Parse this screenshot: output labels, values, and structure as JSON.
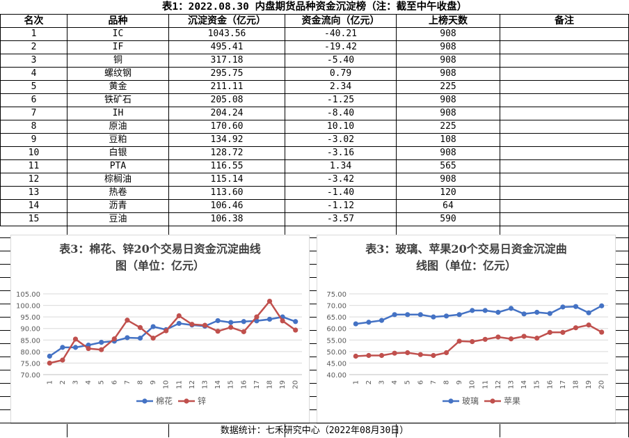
{
  "table": {
    "title": "表1：2022.08.30 内盘期货品种资金沉淀榜（注：截至中午收盘）",
    "headers": [
      "名次",
      "品种",
      "沉淀资金（亿元）",
      "资金流向（亿元）",
      "上榜天数",
      "备注"
    ],
    "rows": [
      [
        "1",
        "IC",
        "1043.56",
        "-40.21",
        "908",
        ""
      ],
      [
        "2",
        "IF",
        "495.41",
        "-19.42",
        "908",
        ""
      ],
      [
        "3",
        "铜",
        "317.18",
        "-5.40",
        "908",
        ""
      ],
      [
        "4",
        "螺纹钢",
        "295.75",
        "0.79",
        "908",
        ""
      ],
      [
        "5",
        "黄金",
        "211.11",
        "2.34",
        "225",
        ""
      ],
      [
        "6",
        "铁矿石",
        "205.08",
        "-1.25",
        "908",
        ""
      ],
      [
        "7",
        "IH",
        "204.24",
        "-8.40",
        "908",
        ""
      ],
      [
        "8",
        "原油",
        "170.60",
        "10.10",
        "225",
        ""
      ],
      [
        "9",
        "豆粕",
        "134.92",
        "-3.02",
        "108",
        ""
      ],
      [
        "10",
        "白银",
        "128.72",
        "-3.16",
        "908",
        ""
      ],
      [
        "11",
        "PTA",
        "116.55",
        "1.34",
        "565",
        ""
      ],
      [
        "12",
        "棕榈油",
        "115.14",
        "-3.42",
        "908",
        ""
      ],
      [
        "13",
        "热卷",
        "113.60",
        "-1.40",
        "120",
        ""
      ],
      [
        "14",
        "沥青",
        "106.46",
        "-1.12",
        "64",
        ""
      ],
      [
        "15",
        "豆油",
        "106.38",
        "-3.57",
        "590",
        ""
      ]
    ]
  },
  "footer": "数据统计：七禾研究中心（2022年08月30日）",
  "colors": {
    "series_blue": "#4472c4",
    "series_red": "#c0504d"
  },
  "chart_data": [
    {
      "type": "line",
      "title": "表3：棉花、锌20个交易日资金沉淀曲线图（单位：亿元）",
      "title_lines": [
        "表3：棉花、锌20个交易日资金沉淀曲线",
        "图（单位：亿元）"
      ],
      "x": [
        1,
        2,
        3,
        4,
        5,
        6,
        7,
        8,
        9,
        10,
        11,
        12,
        13,
        14,
        15,
        16,
        17,
        18,
        19,
        20
      ],
      "ylim": [
        70,
        105
      ],
      "ytick_step": 5,
      "yticks": [
        "70.00",
        "75.00",
        "80.00",
        "85.00",
        "90.00",
        "95.00",
        "100.00",
        "105.00"
      ],
      "legend": "bottom",
      "grid": true,
      "series": [
        {
          "name": "棉花",
          "color": "#4472c4",
          "values": [
            78.0,
            81.8,
            81.8,
            82.8,
            84.0,
            84.5,
            86.0,
            85.8,
            90.8,
            89.5,
            92.2,
            91.5,
            91.0,
            93.4,
            92.6,
            93.0,
            93.3,
            94.0,
            95.0,
            93.0
          ]
        },
        {
          "name": "锌",
          "color": "#c0504d",
          "values": [
            75.0,
            76.3,
            85.4,
            81.3,
            80.8,
            85.5,
            93.6,
            90.4,
            85.8,
            89.0,
            95.5,
            91.8,
            91.4,
            88.8,
            90.5,
            88.6,
            95.0,
            101.8,
            93.3,
            89.3
          ]
        }
      ]
    },
    {
      "type": "line",
      "title": "表3：玻璃、苹果20个交易日资金沉淀曲线图（单位：亿元）",
      "title_lines": [
        "表3：玻璃、苹果20个交易日资金沉淀曲",
        "线图（单位：亿元）"
      ],
      "x": [
        1,
        2,
        3,
        4,
        5,
        6,
        7,
        8,
        9,
        10,
        11,
        12,
        13,
        14,
        15,
        16,
        17,
        18,
        19,
        20
      ],
      "ylim": [
        40,
        75
      ],
      "ytick_step": 5,
      "yticks": [
        "40.00",
        "45.00",
        "50.00",
        "55.00",
        "60.00",
        "65.00",
        "70.00",
        "75.00"
      ],
      "legend": "bottom",
      "grid": true,
      "series": [
        {
          "name": "玻璃",
          "color": "#4472c4",
          "values": [
            62.0,
            62.7,
            63.5,
            66.0,
            66.0,
            66.0,
            65.0,
            65.4,
            66.0,
            67.8,
            67.8,
            67.0,
            68.7,
            66.3,
            67.0,
            66.5,
            69.3,
            69.5,
            66.8,
            69.8
          ]
        },
        {
          "name": "苹果",
          "color": "#c0504d",
          "values": [
            48.0,
            48.3,
            48.3,
            49.3,
            49.5,
            48.7,
            48.3,
            49.5,
            54.5,
            54.3,
            55.3,
            56.3,
            55.5,
            56.6,
            55.8,
            58.3,
            58.3,
            60.3,
            61.5,
            58.4
          ]
        }
      ]
    }
  ]
}
